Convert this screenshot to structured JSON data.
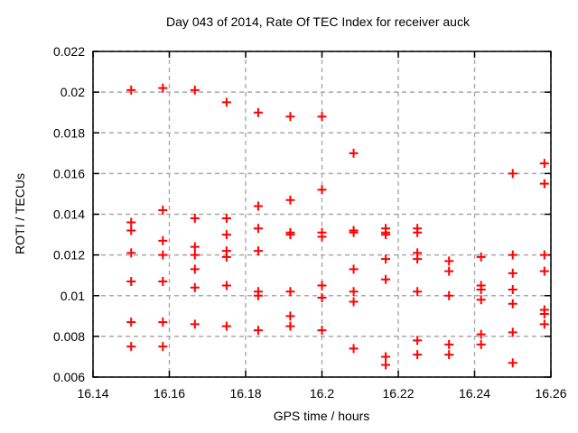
{
  "chart_data": {
    "type": "scatter",
    "title": "Day 043 of 2014, Rate Of TEC Index for receiver auck",
    "xlabel": "GPS time / hours",
    "ylabel": "ROTI / TECUs",
    "xlim": [
      16.14,
      16.26
    ],
    "ylim": [
      0.006,
      0.022
    ],
    "xticks": [
      16.14,
      16.16,
      16.18,
      16.2,
      16.22,
      16.24,
      16.26
    ],
    "xtick_labels": [
      "16.14",
      "16.16",
      "16.18",
      "16.2",
      "16.22",
      "16.24",
      "16.26"
    ],
    "yticks": [
      0.006,
      0.008,
      0.01,
      0.012,
      0.014,
      0.016,
      0.018,
      0.02,
      0.022
    ],
    "ytick_labels": [
      "0.006",
      "0.008",
      "0.01",
      "0.012",
      "0.014",
      "0.016",
      "0.018",
      "0.02",
      "0.022"
    ],
    "grid": true,
    "legend": "none",
    "marker": {
      "shape": "plus",
      "color": "#ff0000",
      "size": 10,
      "stroke_width": 2
    },
    "colors": {
      "border": "#000000",
      "grid": "#a8a8a8",
      "background": "#ffffff",
      "text": "#000000"
    },
    "series": [
      {
        "name": "ROTI",
        "points": [
          [
            16.15,
            0.0201
          ],
          [
            16.15,
            0.0136
          ],
          [
            16.15,
            0.0132
          ],
          [
            16.15,
            0.0121
          ],
          [
            16.15,
            0.0107
          ],
          [
            16.15,
            0.0087
          ],
          [
            16.15,
            0.0075
          ],
          [
            16.1583,
            0.0202
          ],
          [
            16.1583,
            0.0142
          ],
          [
            16.1583,
            0.0127
          ],
          [
            16.1583,
            0.012
          ],
          [
            16.1583,
            0.0107
          ],
          [
            16.1583,
            0.0087
          ],
          [
            16.1583,
            0.0075
          ],
          [
            16.1667,
            0.0201
          ],
          [
            16.1667,
            0.0138
          ],
          [
            16.1667,
            0.0124
          ],
          [
            16.1667,
            0.012
          ],
          [
            16.1667,
            0.0113
          ],
          [
            16.1667,
            0.0104
          ],
          [
            16.1667,
            0.0086
          ],
          [
            16.175,
            0.0195
          ],
          [
            16.175,
            0.0138
          ],
          [
            16.175,
            0.013
          ],
          [
            16.175,
            0.0122
          ],
          [
            16.175,
            0.0119
          ],
          [
            16.175,
            0.0105
          ],
          [
            16.175,
            0.0085
          ],
          [
            16.1833,
            0.019
          ],
          [
            16.1833,
            0.0144
          ],
          [
            16.1833,
            0.0133
          ],
          [
            16.1833,
            0.0122
          ],
          [
            16.1833,
            0.0102
          ],
          [
            16.1833,
            0.01
          ],
          [
            16.1833,
            0.0083
          ],
          [
            16.1917,
            0.0188
          ],
          [
            16.1917,
            0.0147
          ],
          [
            16.1917,
            0.0131
          ],
          [
            16.1917,
            0.013
          ],
          [
            16.1917,
            0.0102
          ],
          [
            16.1917,
            0.009
          ],
          [
            16.1917,
            0.0085
          ],
          [
            16.2,
            0.0188
          ],
          [
            16.2,
            0.0152
          ],
          [
            16.2,
            0.0131
          ],
          [
            16.2,
            0.0129
          ],
          [
            16.2,
            0.0105
          ],
          [
            16.2,
            0.0099
          ],
          [
            16.2,
            0.0083
          ],
          [
            16.2083,
            0.017
          ],
          [
            16.2083,
            0.0132
          ],
          [
            16.2083,
            0.0131
          ],
          [
            16.2083,
            0.0113
          ],
          [
            16.2083,
            0.0102
          ],
          [
            16.2083,
            0.0097
          ],
          [
            16.2083,
            0.0074
          ],
          [
            16.2167,
            0.0133
          ],
          [
            16.2167,
            0.0131
          ],
          [
            16.2167,
            0.013
          ],
          [
            16.2167,
            0.0118
          ],
          [
            16.2167,
            0.0108
          ],
          [
            16.2167,
            0.007
          ],
          [
            16.2167,
            0.0066
          ],
          [
            16.225,
            0.0133
          ],
          [
            16.225,
            0.0131
          ],
          [
            16.225,
            0.0121
          ],
          [
            16.225,
            0.0118
          ],
          [
            16.225,
            0.0102
          ],
          [
            16.225,
            0.0078
          ],
          [
            16.225,
            0.0071
          ],
          [
            16.2333,
            0.0117
          ],
          [
            16.2333,
            0.0112
          ],
          [
            16.2333,
            0.01
          ],
          [
            16.2333,
            0.0076
          ],
          [
            16.2333,
            0.0071
          ],
          [
            16.2417,
            0.0119
          ],
          [
            16.2417,
            0.0105
          ],
          [
            16.2417,
            0.0103
          ],
          [
            16.2417,
            0.0098
          ],
          [
            16.2417,
            0.0081
          ],
          [
            16.2417,
            0.0076
          ],
          [
            16.25,
            0.016
          ],
          [
            16.25,
            0.012
          ],
          [
            16.25,
            0.0111
          ],
          [
            16.25,
            0.0103
          ],
          [
            16.25,
            0.0096
          ],
          [
            16.25,
            0.0082
          ],
          [
            16.25,
            0.0067
          ],
          [
            16.2583,
            0.0165
          ],
          [
            16.2583,
            0.0155
          ],
          [
            16.2583,
            0.012
          ],
          [
            16.2583,
            0.0112
          ],
          [
            16.2583,
            0.0093
          ],
          [
            16.2583,
            0.0091
          ],
          [
            16.2583,
            0.0086
          ]
        ]
      }
    ]
  }
}
